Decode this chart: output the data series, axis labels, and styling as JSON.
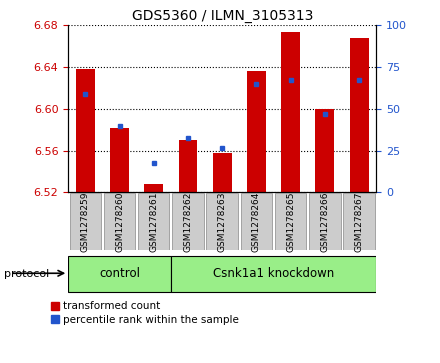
{
  "title": "GDS5360 / ILMN_3105313",
  "samples": [
    "GSM1278259",
    "GSM1278260",
    "GSM1278261",
    "GSM1278262",
    "GSM1278263",
    "GSM1278264",
    "GSM1278265",
    "GSM1278266",
    "GSM1278267"
  ],
  "red_values": [
    6.638,
    6.582,
    6.528,
    6.57,
    6.558,
    6.636,
    6.674,
    6.6,
    6.668
  ],
  "blue_values": [
    6.614,
    6.584,
    6.548,
    6.572,
    6.563,
    6.624,
    6.628,
    6.595,
    6.628
  ],
  "ylim_left": [
    6.52,
    6.68
  ],
  "yticks_left": [
    6.52,
    6.56,
    6.6,
    6.64,
    6.68
  ],
  "yticks_right": [
    0,
    25,
    50,
    75,
    100
  ],
  "base": 6.52,
  "n_control": 3,
  "control_label": "control",
  "knockdown_label": "Csnk1a1 knockdown",
  "protocol_label": "protocol",
  "legend_red": "transformed count",
  "legend_blue": "percentile rank within the sample",
  "bar_color": "#cc0000",
  "blue_color": "#2255cc",
  "group_bg_color": "#99ee88",
  "tick_bg_color": "#cccccc",
  "left_tick_color": "#cc0000",
  "right_tick_color": "#2255cc",
  "bar_width": 0.55
}
